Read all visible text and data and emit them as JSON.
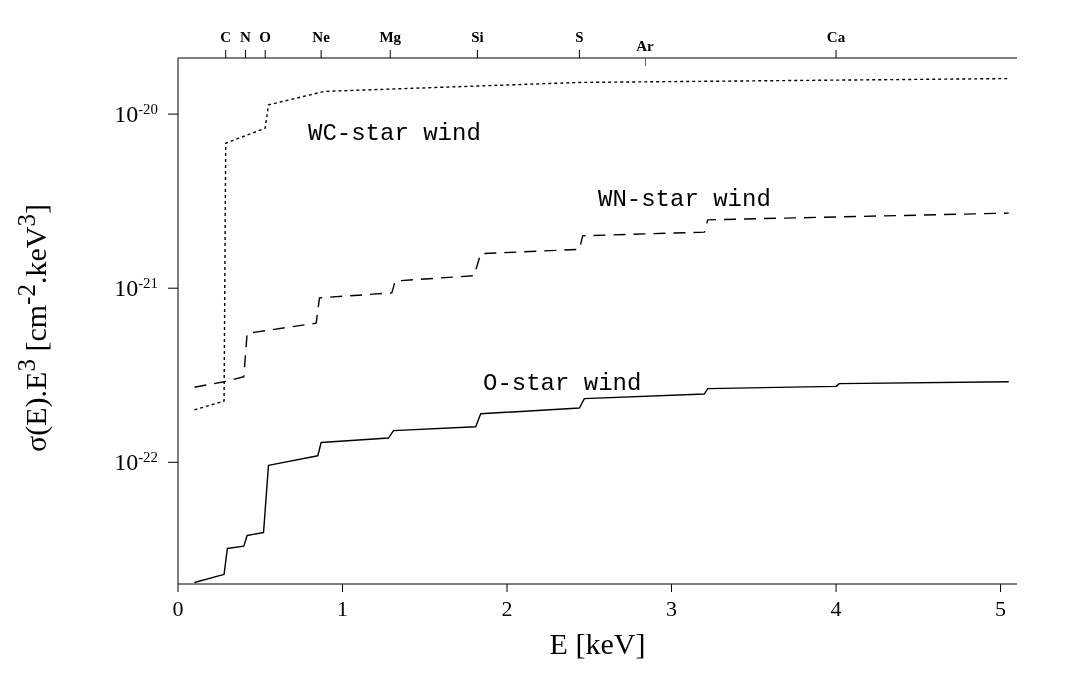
{
  "chart_data": {
    "type": "line",
    "xlabel": "E  [keV]",
    "ylabel": "σ(E).E$^{3}$  [cm$^{-2}$.keV$^{3}$]",
    "xlim": [
      0,
      5.1
    ],
    "xticks": [
      0,
      1,
      2,
      3,
      4,
      5
    ],
    "annotations": [
      {
        "text": "C",
        "x": 0.29
      },
      {
        "text": "N",
        "x": 0.41
      },
      {
        "text": "O",
        "x": 0.53
      },
      {
        "text": "Ne",
        "x": 0.87
      },
      {
        "text": "Mg",
        "x": 1.29
      },
      {
        "text": "Si",
        "x": 1.82
      },
      {
        "text": "S",
        "x": 2.44
      },
      "Ar",
      {
        "text": "Ca",
        "x": 4.0
      }
    ],
    "ylim": [
      2e-23,
      2.1e-20
    ],
    "yticks": [
      {
        "value": 1e-22,
        "label": "10$^{-22}$"
      },
      {
        "value": 1e-21,
        "label": "10$^{-21}$"
      },
      {
        "value": 1e-20,
        "label": "10$^{-20}$"
      }
    ],
    "log": "y",
    "grid": false,
    "legend": false,
    "marker": "none",
    "series": [
      {
        "name": "WC-star wind",
        "color": "#000000",
        "line_style": "dotted",
        "x": [
          0.1,
          0.28,
          0.29,
          0.53,
          0.55,
          0.89,
          1.82,
          2.44,
          5.05
        ],
        "values": [
          2e-22,
          2.25e-22,
          6.8e-21,
          8.3e-21,
          1.13e-20,
          1.35e-20,
          1.45e-20,
          1.52e-20,
          1.6e-20
        ]
      },
      {
        "name": "WN-star wind",
        "color": "#000000",
        "line_style": "dashed",
        "x": [
          0.1,
          0.28,
          0.4,
          0.42,
          0.84,
          0.86,
          1.3,
          1.32,
          1.8,
          1.84,
          2.44,
          2.46,
          3.2,
          3.22,
          5.05
        ],
        "values": [
          2.7e-22,
          2.9e-22,
          3.1e-22,
          5.5e-22,
          6.3e-22,
          8.8e-22,
          9.4e-22,
          1.1e-21,
          1.18e-21,
          1.58e-21,
          1.67e-21,
          2e-21,
          2.1e-21,
          2.47e-21,
          2.7e-21
        ]
      },
      {
        "name": "O-star wind",
        "color": "#000000",
        "line_style": "solid",
        "x": [
          0.1,
          0.28,
          0.3,
          0.4,
          0.42,
          0.52,
          0.55,
          0.85,
          0.87,
          1.28,
          1.31,
          1.81,
          1.84,
          2.44,
          2.47,
          3.2,
          3.22,
          4.0,
          4.02,
          5.05
        ],
        "values": [
          2.04e-23,
          2.27e-23,
          3.2e-23,
          3.3e-23,
          3.8e-23,
          3.95e-23,
          9.6e-23,
          1.09e-22,
          1.3e-22,
          1.38e-22,
          1.52e-22,
          1.6e-22,
          1.9e-22,
          2.05e-22,
          2.32e-22,
          2.47e-22,
          2.65e-22,
          2.73e-22,
          2.83e-22,
          2.9e-22
        ]
      }
    ]
  }
}
